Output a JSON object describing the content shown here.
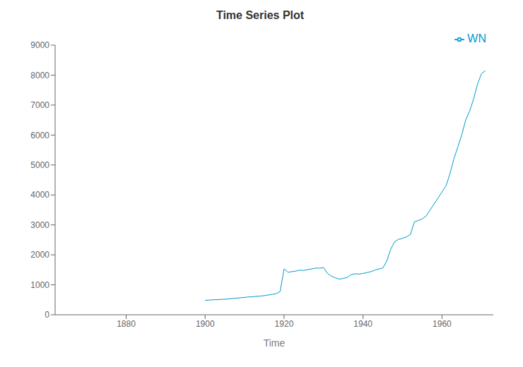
{
  "chart_data": {
    "type": "line",
    "title": "Time Series Plot",
    "xlabel": "Time",
    "x": [
      1900,
      1901,
      1902,
      1903,
      1904,
      1905,
      1906,
      1907,
      1908,
      1909,
      1910,
      1911,
      1912,
      1913,
      1914,
      1915,
      1916,
      1917,
      1918,
      1919,
      1920,
      1921,
      1922,
      1923,
      1924,
      1925,
      1926,
      1927,
      1928,
      1929,
      1930,
      1931,
      1932,
      1933,
      1934,
      1935,
      1936,
      1937,
      1938,
      1939,
      1940,
      1941,
      1942,
      1943,
      1944,
      1945,
      1946,
      1947,
      1948,
      1949,
      1950,
      1951,
      1952,
      1953,
      1954,
      1955,
      1956,
      1957,
      1958,
      1959,
      1960,
      1961,
      1962,
      1963,
      1964,
      1965,
      1966,
      1967,
      1968,
      1969,
      1970,
      1971
    ],
    "series": [
      {
        "name": "WN",
        "color": "#0099CC",
        "values": [
          480,
          490,
          500,
          505,
          510,
          520,
          530,
          545,
          555,
          570,
          580,
          595,
          600,
          615,
          625,
          640,
          660,
          680,
          700,
          780,
          1530,
          1420,
          1440,
          1460,
          1490,
          1480,
          1510,
          1530,
          1560,
          1555,
          1575,
          1380,
          1290,
          1230,
          1190,
          1215,
          1250,
          1340,
          1370,
          1360,
          1380,
          1410,
          1440,
          1490,
          1530,
          1560,
          1790,
          2190,
          2440,
          2520,
          2550,
          2600,
          2680,
          3100,
          3150,
          3200,
          3300,
          3500,
          3700,
          3900,
          4100,
          4300,
          4700,
          5200,
          5600,
          6000,
          6500,
          6800,
          7200,
          7700,
          8050,
          8150
        ]
      }
    ],
    "xlim": [
      1862,
      1973
    ],
    "ylim": [
      0,
      9000
    ],
    "xticks": [
      1880,
      1900,
      1920,
      1940,
      1960
    ],
    "yticks": [
      0,
      1000,
      2000,
      3000,
      4000,
      5000,
      6000,
      7000,
      8000,
      9000
    ],
    "grid": false,
    "legend": "upper right"
  }
}
